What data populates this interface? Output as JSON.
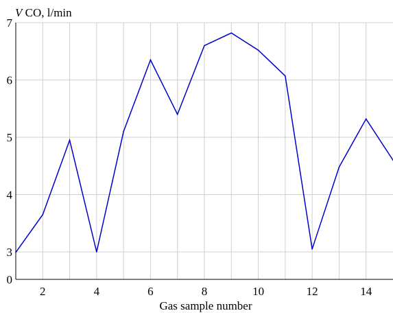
{
  "chart_data": {
    "type": "line",
    "title": "",
    "ylabel_italic": "V",
    "ylabel_rest": " CO, l/min",
    "xlabel": "Gas sample number",
    "xlim": [
      1,
      15
    ],
    "ylim": [
      0,
      7
    ],
    "axis_break": "y axis broken between 0 and 3",
    "x_ticks": [
      2,
      4,
      6,
      8,
      10,
      12,
      14
    ],
    "y_ticks": [
      0,
      3,
      4,
      5,
      6,
      7
    ],
    "grid": true,
    "line_color": "#0000cc",
    "series": [
      {
        "x": [
          1,
          2,
          3,
          4,
          5,
          6,
          7,
          8,
          9,
          10,
          11,
          12,
          13,
          14,
          15
        ],
        "values": [
          2.95,
          3.65,
          4.95,
          3.0,
          5.1,
          6.35,
          5.4,
          6.6,
          6.82,
          6.52,
          6.07,
          3.05,
          4.48,
          5.32,
          4.6
        ]
      }
    ]
  }
}
